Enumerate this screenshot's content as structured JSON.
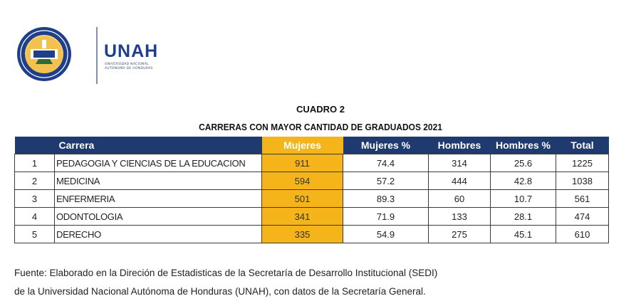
{
  "logo": {
    "brand": "UNAH",
    "subtitle_line1": "UNIVERSIDAD NACIONAL",
    "subtitle_line2": "AUTÓNOMA DE HONDURAS",
    "colors": {
      "brand_blue": "#1f3f8a",
      "gold": "#f2c14e"
    }
  },
  "caption": {
    "line1": "CUADRO 2",
    "line2": "CARRERAS CON MAYOR CANTIDAD DE GRADUADOS 2021"
  },
  "table": {
    "headers": [
      "",
      "Carrera",
      "Mujeres",
      "Mujeres %",
      "Hombres",
      "Hombres %",
      "Total"
    ],
    "rows": [
      {
        "n": "1",
        "carrera": "PEDAGOGIA Y CIENCIAS DE LA EDUCACION",
        "mujeres": "911",
        "mujeres_pct": "74.4",
        "hombres": "314",
        "hombres_pct": "25.6",
        "total": "1225"
      },
      {
        "n": "2",
        "carrera": "MEDICINA",
        "mujeres": "594",
        "mujeres_pct": "57.2",
        "hombres": "444",
        "hombres_pct": "42.8",
        "total": "1038"
      },
      {
        "n": "3",
        "carrera": "ENFERMERIA",
        "mujeres": "501",
        "mujeres_pct": "89.3",
        "hombres": "60",
        "hombres_pct": "10.7",
        "total": "561"
      },
      {
        "n": "4",
        "carrera": "ODONTOLOGIA",
        "mujeres": "341",
        "mujeres_pct": "71.9",
        "hombres": "133",
        "hombres_pct": "28.1",
        "total": "474"
      },
      {
        "n": "5",
        "carrera": "DERECHO",
        "mujeres": "335",
        "mujeres_pct": "54.9",
        "hombres": "275",
        "hombres_pct": "45.1",
        "total": "610"
      }
    ],
    "colors": {
      "header_bg": "#1f3a6e",
      "highlight": "#f4b41a"
    }
  },
  "footer": {
    "line1": "Fuente: Elaborado en la Direción de Estadisticas de la Secretaría de Desarrollo Institucional (SEDI)",
    "line2": "de la Universidad Nacional Autónoma de Honduras (UNAH), con datos de la Secretaría General."
  }
}
